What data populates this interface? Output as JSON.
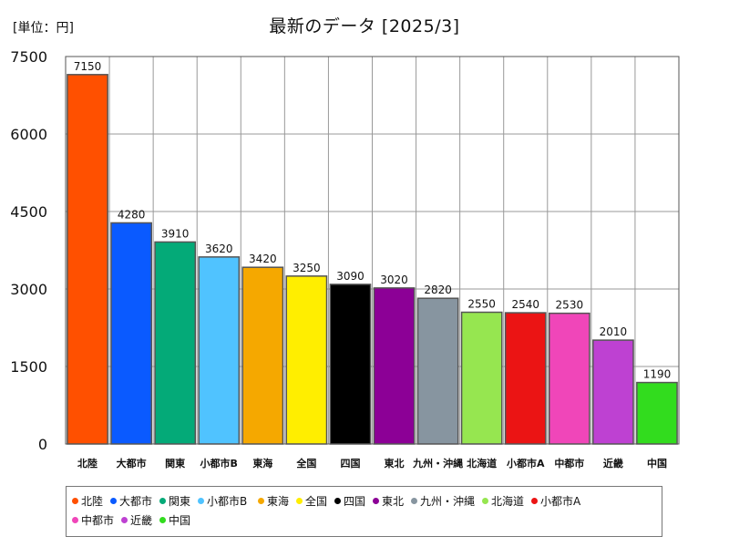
{
  "unit_label": "[単位：円]",
  "chart_data": {
    "type": "bar",
    "title": "最新のデータ [2025/3]",
    "xlabel": "",
    "ylabel": "",
    "ylim": [
      0,
      7500
    ],
    "yticks": [
      0,
      1500,
      3000,
      4500,
      6000,
      7500
    ],
    "grid": true,
    "legend_position": "bottom",
    "categories": [
      "北陸",
      "大都市",
      "関東",
      "小都市B",
      "東海",
      "全国",
      "四国",
      "東北",
      "九州・沖縄",
      "北海道",
      "小都市A",
      "中都市",
      "近畿",
      "中国"
    ],
    "values": [
      7150,
      4280,
      3910,
      3620,
      3420,
      3250,
      3090,
      3020,
      2820,
      2550,
      2540,
      2530,
      2010,
      1190
    ],
    "colors": [
      "#ff5000",
      "#0a5aff",
      "#04aa78",
      "#50c3ff",
      "#f5a800",
      "#ffee00",
      "#000000",
      "#8c0096",
      "#8795a0",
      "#96e650",
      "#eb1414",
      "#f046b9",
      "#be41d2",
      "#32dc1e"
    ]
  }
}
